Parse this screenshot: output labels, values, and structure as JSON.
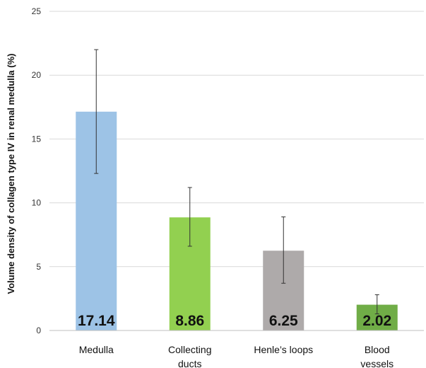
{
  "chart_data": {
    "type": "bar",
    "title": "",
    "xlabel": "",
    "ylabel": "Volume density of collagen type IV in renal medulla (%)",
    "ylim": [
      0,
      25
    ],
    "yticks": [
      0,
      5,
      10,
      15,
      20,
      25
    ],
    "grid": true,
    "categories": [
      {
        "lines": [
          "Medulla"
        ]
      },
      {
        "lines": [
          "Collecting",
          "ducts"
        ]
      },
      {
        "lines": [
          "Henle’s loops"
        ]
      },
      {
        "lines": [
          "Blood",
          "vessels"
        ]
      }
    ],
    "values": [
      17.14,
      8.86,
      6.25,
      2.02
    ],
    "data_labels": [
      "17.14",
      "8.86",
      "6.25",
      "2.02"
    ],
    "error_low": [
      12.3,
      6.6,
      3.7,
      1.3
    ],
    "error_high": [
      22.0,
      11.2,
      8.9,
      2.8
    ],
    "colors": [
      "#9dc3e6",
      "#92d050",
      "#aeaaaa",
      "#70ad47"
    ]
  }
}
